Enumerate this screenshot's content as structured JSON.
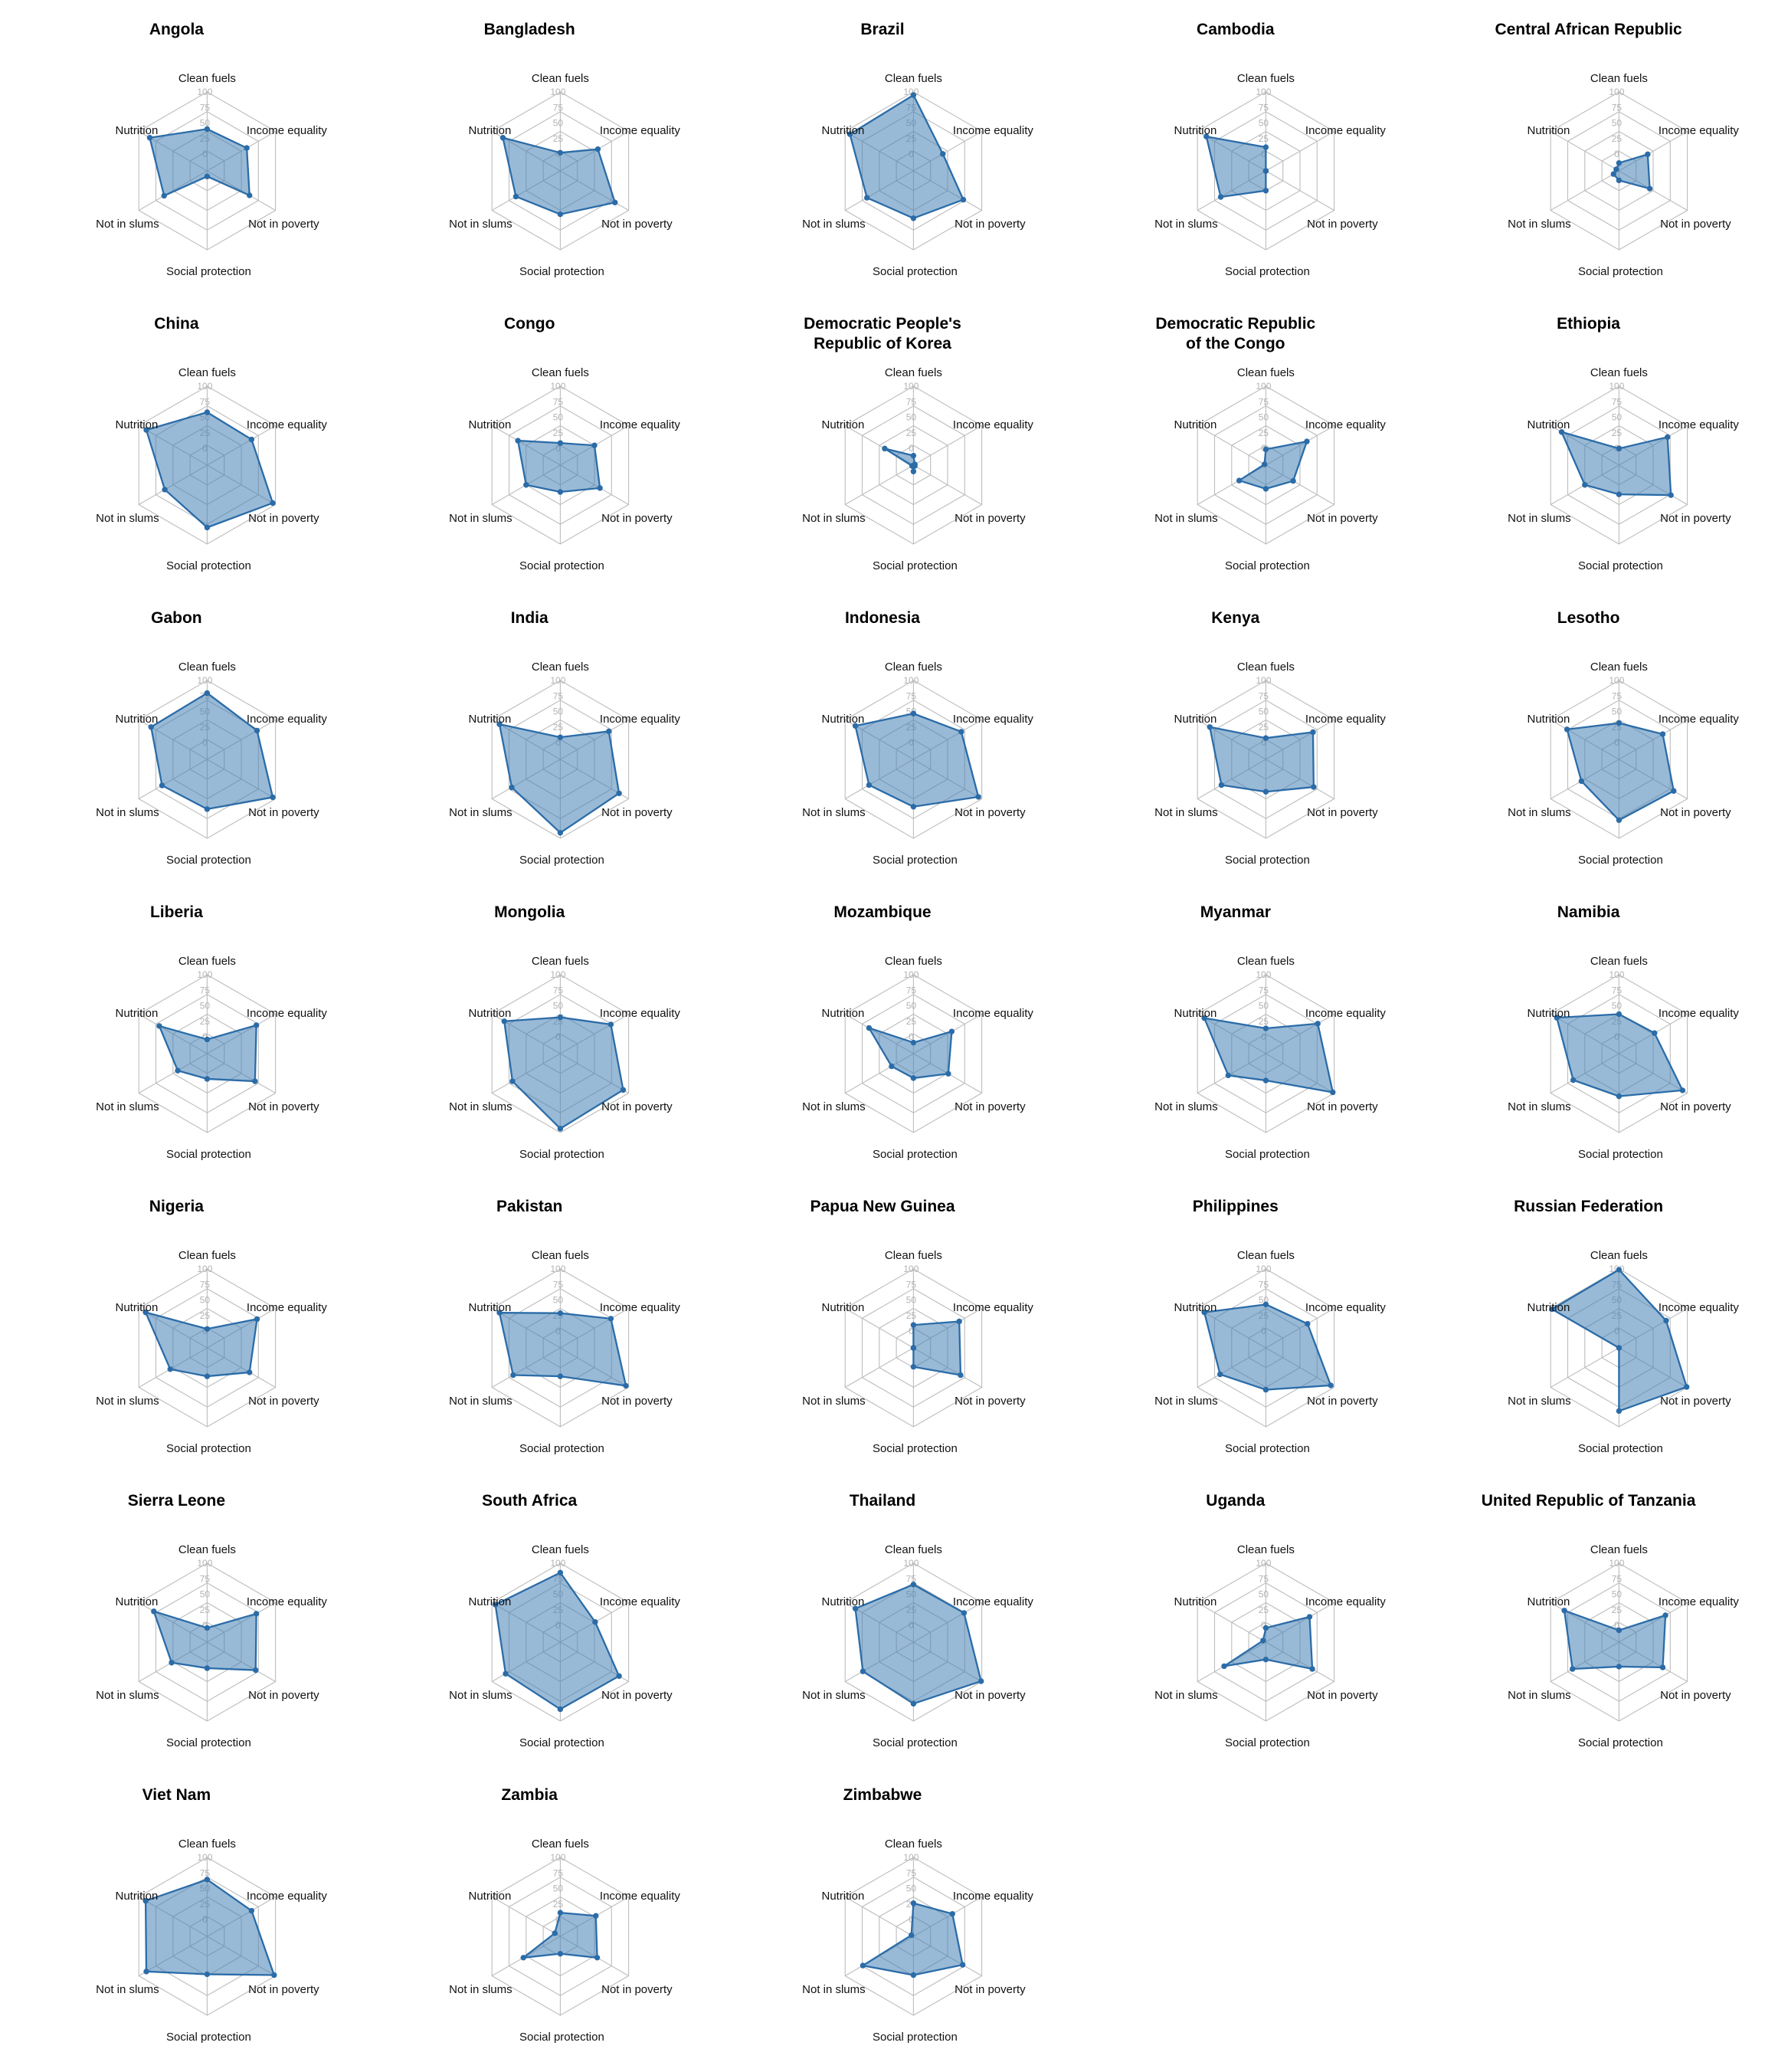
{
  "config": {
    "grid_color": "#bdbdbd",
    "axis_color": "#bdbdbd",
    "polygon_fill": "rgba(70,130,180,0.55)",
    "polygon_stroke": "#2b6ca8",
    "point_color": "#2b6ca8",
    "tick_color": "#b3b3b3",
    "label_color": "#111111",
    "title_color": "#000000"
  },
  "chart_data": {
    "type": "radar",
    "scale": {
      "min": 0,
      "max": 100,
      "ticks": [
        "0",
        "25",
        "50",
        "75",
        "100"
      ]
    },
    "axes": [
      "Clean fuels",
      "Income equality",
      "Not in poverty",
      "Social protection",
      "Not in slums",
      "Nutrition"
    ],
    "series": [
      {
        "name": "Angola",
        "values": [
          53,
          58,
          62,
          7,
          63,
          84
        ]
      },
      {
        "name": "Bangladesh",
        "values": [
          23,
          55,
          80,
          55,
          65,
          84
        ]
      },
      {
        "name": "Brazil",
        "values": [
          96,
          43,
          73,
          60,
          68,
          93
        ]
      },
      {
        "name": "Cambodia",
        "values": [
          30,
          0,
          0,
          25,
          66,
          87
        ]
      },
      {
        "name": "Central African Republic",
        "values": [
          10,
          42,
          45,
          12,
          8,
          4
        ]
      },
      {
        "name": "China",
        "values": [
          67,
          65,
          96,
          79,
          62,
          89
        ]
      },
      {
        "name": "Congo",
        "values": [
          28,
          50,
          58,
          34,
          50,
          62
        ]
      },
      {
        "name": "Democratic People's\nRepublic of Korea",
        "values": [
          12,
          2,
          2,
          8,
          2,
          42
        ]
      },
      {
        "name": "Democratic Republic\nof the Congo",
        "values": [
          20,
          60,
          40,
          30,
          39,
          2
        ]
      },
      {
        "name": "Ethiopia",
        "values": [
          21,
          71,
          76,
          37,
          50,
          84
        ]
      },
      {
        "name": "Gabon",
        "values": [
          84,
          73,
          96,
          63,
          66,
          82
        ]
      },
      {
        "name": "India",
        "values": [
          28,
          71,
          86,
          93,
          71,
          89
        ]
      },
      {
        "name": "Indonesia",
        "values": [
          58,
          70,
          95,
          60,
          65,
          85
        ]
      },
      {
        "name": "Kenya",
        "values": [
          27,
          69,
          70,
          41,
          65,
          82
        ]
      },
      {
        "name": "Lesotho",
        "values": [
          46,
          64,
          80,
          77,
          55,
          76
        ]
      },
      {
        "name": "Liberia",
        "values": [
          18,
          72,
          70,
          32,
          43,
          70
        ]
      },
      {
        "name": "Mongolia",
        "values": [
          46,
          74,
          92,
          95,
          70,
          82
        ]
      },
      {
        "name": "Mozambique",
        "values": [
          14,
          56,
          51,
          31,
          32,
          65
        ]
      },
      {
        "name": "Myanmar",
        "values": [
          32,
          76,
          98,
          34,
          55,
          90
        ]
      },
      {
        "name": "Namibia",
        "values": [
          50,
          52,
          93,
          54,
          67,
          91
        ]
      },
      {
        "name": "Nigeria",
        "values": [
          24,
          73,
          62,
          36,
          54,
          90
        ]
      },
      {
        "name": "Pakistan",
        "values": [
          44,
          74,
          96,
          36,
          69,
          89
        ]
      },
      {
        "name": "Papua New Guinea",
        "values": [
          29,
          67,
          69,
          24,
          0,
          0
        ]
      },
      {
        "name": "Philippines",
        "values": [
          55,
          61,
          95,
          53,
          67,
          90
        ]
      },
      {
        "name": "Russian Federation",
        "values": [
          99,
          69,
          99,
          80,
          0,
          98
        ]
      },
      {
        "name": "Sierra Leone",
        "values": [
          18,
          72,
          71,
          33,
          52,
          78
        ]
      },
      {
        "name": "South Africa",
        "values": [
          88,
          51,
          86,
          85,
          80,
          95
        ]
      },
      {
        "name": "Thailand",
        "values": [
          73,
          74,
          99,
          78,
          74,
          85
        ]
      },
      {
        "name": "Uganda",
        "values": [
          18,
          64,
          68,
          22,
          61,
          4
        ]
      },
      {
        "name": "United Republic of Tanzania",
        "values": [
          15,
          68,
          64,
          31,
          68,
          80
        ]
      },
      {
        "name": "Viet Nam",
        "values": [
          72,
          65,
          98,
          48,
          89,
          90
        ]
      },
      {
        "name": "Zambia",
        "values": [
          30,
          52,
          54,
          22,
          54,
          8
        ]
      },
      {
        "name": "Zimbabwe",
        "values": [
          42,
          57,
          72,
          49,
          74,
          3
        ]
      }
    ]
  }
}
